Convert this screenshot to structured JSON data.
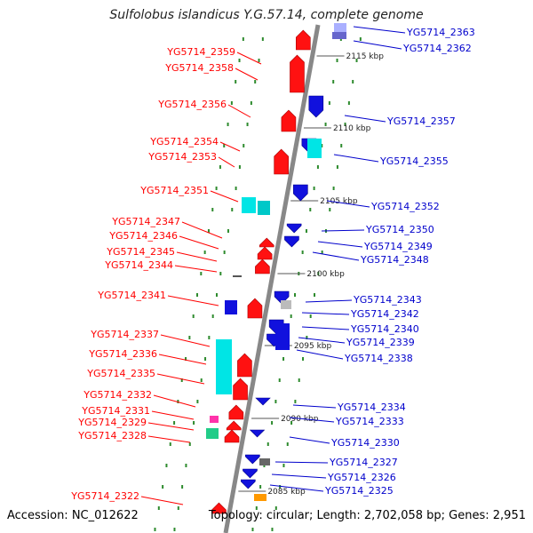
{
  "title": "Sulfolobus islandicus Y.G.57.14, complete genome",
  "accession": "Accession: NC_012622",
  "summary": "Topology: circular; Length: 2,702,058 bp; Genes: 2,951",
  "colors": {
    "forward_label": "#ff0000",
    "reverse_label": "#0000cc",
    "backbone": "#888888",
    "tick": "#2e8b2e"
  },
  "scale_labels": [
    "2115 kbp",
    "2110 kbp",
    "2105 kbp",
    "2100 kbp",
    "2095 kbp",
    "2090 kbp",
    "2085 kbp"
  ],
  "forward_genes": [
    "YG5714_2359",
    "YG5714_2358",
    "YG5714_2356",
    "YG5714_2354",
    "YG5714_2353",
    "YG5714_2351",
    "YG5714_2347",
    "YG5714_2346",
    "YG5714_2345",
    "YG5714_2344",
    "YG5714_2341",
    "YG5714_2337",
    "YG5714_2336",
    "YG5714_2335",
    "YG5714_2332",
    "YG5714_2331",
    "YG5714_2329",
    "YG5714_2328",
    "YG5714_2322"
  ],
  "reverse_genes": [
    "YG5714_2363",
    "YG5714_2362",
    "YG5714_2357",
    "YG5714_2355",
    "YG5714_2352",
    "YG5714_2350",
    "YG5714_2349",
    "YG5714_2348",
    "YG5714_2343",
    "YG5714_2342",
    "YG5714_2340",
    "YG5714_2339",
    "YG5714_2338",
    "YG5714_2334",
    "YG5714_2333",
    "YG5714_2330",
    "YG5714_2327",
    "YG5714_2326",
    "YG5714_2325"
  ]
}
